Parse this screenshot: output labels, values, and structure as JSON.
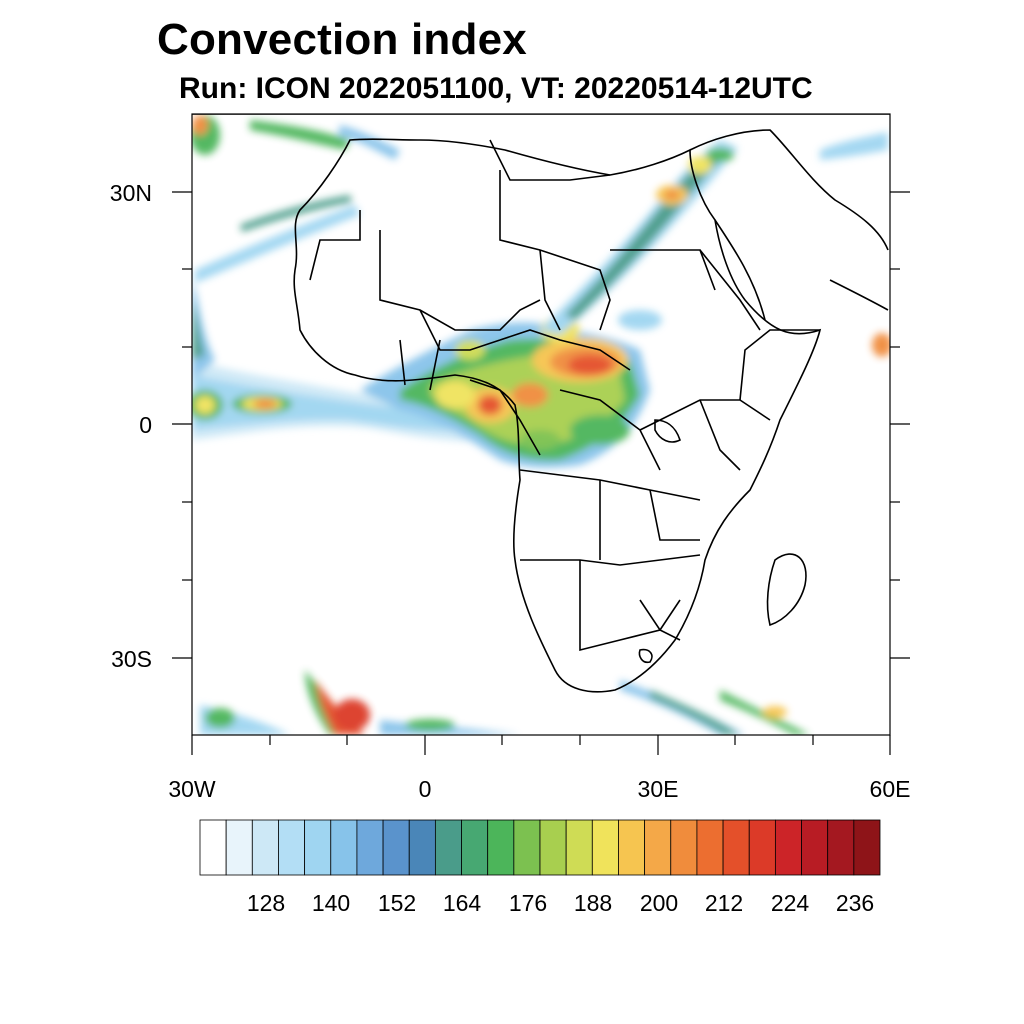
{
  "title": "Convection index",
  "subtitle": "Run: ICON 2022051100,  VT: 20220514-12UTC",
  "map": {
    "region": "Africa",
    "lon_range": [
      -30,
      60
    ],
    "lat_range": [
      -40,
      40
    ],
    "lat_labels": [
      "30N",
      "0",
      "30S"
    ],
    "lon_labels": [
      "30W",
      "0",
      "30E",
      "60E"
    ]
  },
  "colorbar": {
    "labels": [
      "128",
      "140",
      "152",
      "164",
      "176",
      "188",
      "200",
      "212",
      "224",
      "236"
    ],
    "colors": [
      "#ffffff",
      "#e8f4fb",
      "#cde8f6",
      "#b3def5",
      "#9fd5f1",
      "#87c3ea",
      "#6ea8dc",
      "#5a93cc",
      "#4a86b8",
      "#4a9c8a",
      "#47a872",
      "#4cb55a",
      "#7cc150",
      "#a8cf4f",
      "#cfdc55",
      "#f0e35b",
      "#f6c550",
      "#f4a848",
      "#f08c3c",
      "#ec6e30",
      "#e4502a",
      "#dc3a28",
      "#cc2428",
      "#b81c24",
      "#a41820",
      "#8e1418"
    ]
  }
}
